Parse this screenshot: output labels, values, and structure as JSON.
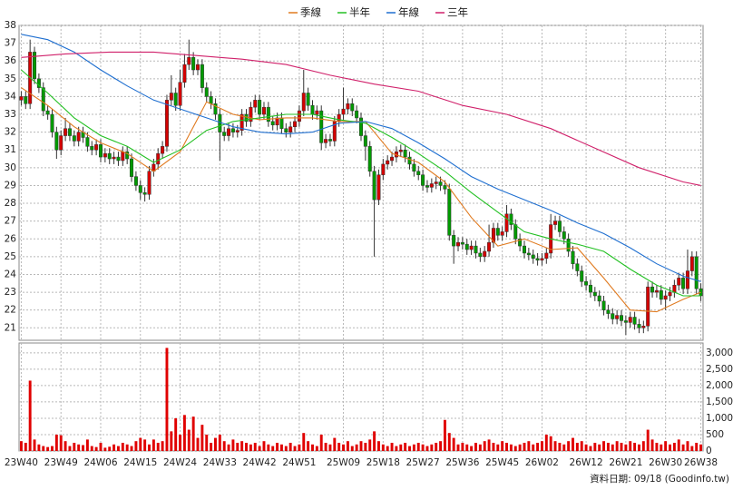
{
  "chart_data": [
    {
      "type": "candlestick",
      "legend": "top",
      "grid": true,
      "up_color": "#d40000",
      "down_color": "#009a00",
      "categories": [
        "23W40",
        null,
        null,
        null,
        null,
        null,
        null,
        null,
        null,
        "23W49",
        null,
        null,
        null,
        null,
        null,
        null,
        null,
        null,
        "24W06",
        null,
        null,
        null,
        null,
        null,
        null,
        null,
        null,
        "24W15",
        null,
        null,
        null,
        null,
        null,
        null,
        null,
        null,
        "24W24",
        null,
        null,
        null,
        null,
        null,
        null,
        null,
        null,
        "24W33",
        null,
        null,
        null,
        null,
        null,
        null,
        null,
        null,
        "24W42",
        null,
        null,
        null,
        null,
        null,
        null,
        null,
        null,
        "24W51",
        null,
        null,
        null,
        null,
        null,
        null,
        null,
        null,
        null,
        "25W09",
        null,
        null,
        null,
        null,
        null,
        null,
        null,
        null,
        "25W18",
        null,
        null,
        null,
        null,
        null,
        null,
        null,
        null,
        "25W27",
        null,
        null,
        null,
        null,
        null,
        null,
        null,
        null,
        "25W36",
        null,
        null,
        null,
        null,
        null,
        null,
        null,
        null,
        "25W45",
        null,
        null,
        null,
        null,
        null,
        null,
        null,
        null,
        "26W02",
        null,
        null,
        null,
        null,
        null,
        null,
        null,
        null,
        null,
        "26W12",
        null,
        null,
        null,
        null,
        null,
        null,
        null,
        null,
        "26W21",
        null,
        null,
        null,
        null,
        null,
        null,
        null,
        null,
        "26W30",
        null,
        null,
        null,
        null,
        null,
        null,
        null,
        "26W38"
      ],
      "open": [
        33.8,
        34.0,
        33.6,
        36.5,
        35.0,
        34.5,
        33.2,
        33.0,
        32.0,
        31.0,
        31.8,
        32.2,
        31.8,
        31.5,
        32.0,
        31.7,
        31.2,
        31.0,
        31.3,
        30.6,
        30.8,
        30.5,
        30.6,
        30.4,
        30.9,
        30.5,
        29.5,
        29.0,
        28.6,
        28.5,
        29.8,
        30.2,
        30.8,
        31.2,
        33.8,
        34.2,
        33.5,
        34.8,
        35.8,
        36.2,
        35.5,
        35.8,
        34.5,
        34.0,
        33.6,
        33.0,
        32.0,
        31.8,
        32.2,
        32.0,
        32.1,
        33.0,
        32.6,
        33.4,
        33.8,
        33.0,
        33.4,
        32.6,
        32.4,
        32.8,
        32.2,
        32.0,
        32.3,
        32.6,
        33.2,
        34.2,
        33.5,
        33.0,
        33.2,
        31.4,
        31.6,
        31.5,
        32.6,
        33.0,
        33.3,
        33.6,
        33.2,
        32.8,
        31.8,
        31.2,
        29.8,
        28.2,
        29.6,
        30.2,
        30.4,
        30.6,
        30.9,
        31.0,
        30.6,
        30.2,
        29.8,
        29.6,
        29.0,
        28.9,
        29.1,
        29.2,
        29.0,
        28.8,
        26.2,
        25.6,
        25.8,
        25.7,
        25.4,
        25.6,
        25.2,
        25.0,
        25.3,
        25.8,
        26.6,
        26.2,
        26.4,
        27.4,
        26.8,
        26.0,
        25.6,
        25.2,
        25.1,
        24.9,
        24.8,
        24.9,
        25.2,
        26.8,
        27.0,
        26.4,
        26.0,
        25.3,
        24.6,
        24.2,
        23.6,
        23.4,
        23.0,
        22.8,
        22.5,
        22.0,
        21.8,
        21.5,
        21.7,
        21.4,
        21.3,
        21.6,
        21.2,
        21.0,
        21.1,
        23.3,
        23.0,
        23.1,
        22.6,
        22.8,
        23.0,
        23.4,
        23.8,
        23.2,
        24.2,
        25.0,
        23.2
      ],
      "high": [
        34.3,
        34.3,
        37.2,
        36.8,
        35.3,
        34.8,
        33.5,
        33.3,
        32.3,
        32.1,
        32.8,
        32.5,
        32.1,
        32.3,
        32.3,
        32.0,
        31.5,
        31.6,
        31.6,
        31.1,
        31.1,
        30.9,
        30.9,
        31.2,
        31.2,
        30.8,
        29.8,
        29.3,
        28.9,
        30.1,
        30.5,
        31.1,
        31.5,
        34.1,
        35.2,
        34.5,
        35.5,
        36.4,
        37.2,
        36.5,
        36.1,
        36.1,
        34.8,
        34.3,
        33.9,
        33.3,
        32.3,
        32.5,
        32.5,
        32.4,
        33.3,
        33.3,
        33.7,
        34.1,
        34.1,
        33.7,
        33.7,
        32.9,
        33.1,
        33.1,
        32.5,
        32.6,
        32.9,
        33.5,
        35.5,
        34.5,
        33.8,
        33.5,
        33.5,
        31.9,
        31.9,
        32.9,
        33.3,
        34.5,
        33.9,
        33.9,
        33.5,
        33.1,
        32.1,
        31.5,
        30.1,
        29.9,
        30.5,
        30.7,
        30.9,
        31.2,
        31.3,
        31.3,
        30.9,
        30.5,
        30.1,
        29.9,
        29.3,
        29.4,
        29.5,
        29.5,
        29.3,
        29.1,
        26.5,
        26.1,
        26.1,
        26.0,
        25.9,
        25.9,
        25.5,
        25.6,
        26.8,
        26.9,
        26.9,
        26.7,
        27.9,
        27.7,
        27.1,
        26.3,
        25.9,
        25.5,
        25.4,
        25.2,
        25.2,
        25.5,
        27.4,
        27.3,
        27.3,
        26.7,
        26.3,
        25.6,
        24.9,
        24.5,
        23.9,
        23.7,
        23.3,
        23.1,
        22.8,
        22.3,
        22.1,
        22.0,
        22.0,
        21.7,
        21.9,
        21.9,
        21.5,
        21.4,
        23.6,
        23.6,
        23.4,
        23.4,
        23.1,
        23.3,
        23.7,
        24.1,
        24.1,
        25.4,
        25.3,
        25.3,
        23.5
      ],
      "low": [
        33.5,
        33.3,
        33.3,
        34.7,
        34.2,
        32.9,
        32.7,
        31.7,
        30.5,
        30.7,
        31.5,
        31.5,
        31.2,
        31.2,
        31.4,
        30.9,
        30.7,
        30.7,
        30.3,
        30.3,
        30.2,
        30.2,
        30.1,
        30.1,
        30.2,
        29.2,
        28.7,
        28.2,
        28.1,
        28.2,
        29.5,
        29.9,
        30.5,
        30.9,
        33.5,
        33.2,
        33.2,
        34.5,
        35.5,
        35.2,
        35.2,
        34.2,
        33.7,
        33.3,
        32.7,
        30.4,
        31.5,
        31.5,
        31.7,
        31.7,
        31.8,
        32.3,
        32.3,
        33.1,
        32.7,
        32.7,
        32.3,
        32.1,
        32.1,
        31.9,
        31.7,
        31.7,
        32.0,
        32.3,
        32.9,
        33.2,
        32.7,
        32.7,
        31.0,
        31.1,
        31.2,
        31.2,
        32.3,
        32.7,
        33.0,
        32.9,
        32.5,
        31.5,
        30.4,
        29.5,
        25.0,
        27.9,
        29.3,
        29.9,
        30.1,
        30.3,
        30.6,
        30.3,
        29.9,
        29.5,
        29.3,
        28.7,
        28.6,
        28.6,
        28.8,
        28.7,
        28.5,
        25.9,
        24.6,
        25.3,
        25.4,
        25.1,
        25.1,
        24.9,
        24.7,
        24.7,
        25.0,
        25.5,
        25.9,
        25.9,
        26.1,
        26.5,
        25.7,
        25.3,
        24.9,
        24.8,
        24.6,
        24.5,
        24.5,
        24.6,
        24.9,
        26.5,
        26.1,
        25.7,
        25.0,
        24.3,
        23.9,
        23.3,
        23.1,
        22.7,
        22.5,
        22.2,
        21.7,
        21.5,
        21.2,
        21.2,
        21.1,
        20.6,
        21.0,
        20.9,
        20.7,
        20.7,
        20.8,
        22.7,
        22.7,
        22.3,
        22.0,
        22.5,
        22.7,
        23.1,
        22.9,
        22.9,
        23.9,
        22.9,
        22.5
      ],
      "close": [
        34.0,
        33.6,
        36.5,
        35.0,
        34.5,
        33.2,
        33.0,
        32.0,
        31.0,
        31.8,
        32.2,
        31.8,
        31.5,
        32.0,
        31.7,
        31.2,
        31.0,
        31.3,
        30.6,
        30.8,
        30.5,
        30.6,
        30.4,
        30.9,
        30.5,
        29.5,
        29.0,
        28.6,
        28.5,
        29.8,
        30.2,
        30.8,
        31.2,
        33.8,
        34.2,
        33.5,
        34.8,
        35.8,
        36.2,
        35.5,
        35.8,
        34.5,
        34.0,
        33.6,
        33.0,
        32.0,
        31.8,
        32.2,
        32.0,
        32.1,
        33.0,
        32.6,
        33.4,
        33.8,
        33.0,
        33.4,
        32.6,
        32.4,
        32.8,
        32.2,
        32.0,
        32.3,
        32.6,
        33.2,
        34.2,
        33.5,
        33.0,
        33.2,
        31.4,
        31.6,
        31.5,
        32.6,
        33.0,
        33.3,
        33.6,
        33.2,
        32.8,
        31.8,
        31.2,
        29.8,
        28.2,
        29.6,
        30.2,
        30.4,
        30.6,
        30.9,
        31.0,
        30.6,
        30.2,
        29.8,
        29.6,
        29.0,
        28.9,
        29.1,
        29.2,
        29.0,
        28.8,
        26.2,
        25.6,
        25.8,
        25.7,
        25.4,
        25.6,
        25.2,
        25.0,
        25.3,
        25.8,
        26.6,
        26.2,
        26.4,
        27.4,
        26.8,
        26.0,
        25.6,
        25.2,
        25.1,
        24.9,
        24.8,
        24.9,
        25.2,
        26.8,
        27.0,
        26.4,
        26.0,
        25.3,
        24.6,
        24.2,
        23.6,
        23.4,
        23.0,
        22.8,
        22.5,
        22.0,
        21.8,
        21.5,
        21.7,
        21.4,
        21.3,
        21.6,
        21.2,
        21.0,
        21.1,
        23.3,
        23.0,
        23.1,
        22.6,
        22.8,
        23.0,
        23.4,
        23.8,
        23.2,
        24.2,
        25.0,
        23.2,
        22.8
      ],
      "series": [
        {
          "name": "季線",
          "color": "#e07a1f",
          "x": [
            0,
            6,
            12,
            18,
            24,
            30,
            36,
            42,
            48,
            54,
            60,
            66,
            72,
            78,
            84,
            90,
            96,
            102,
            108,
            114,
            120,
            126,
            132,
            138,
            144,
            150,
            154
          ],
          "values": [
            34.5,
            33.5,
            32.3,
            31.4,
            30.8,
            29.8,
            30.9,
            33.7,
            33.0,
            32.7,
            32.8,
            32.8,
            32.6,
            32.6,
            30.8,
            30.3,
            29.2,
            27.2,
            25.6,
            26.0,
            25.4,
            25.5,
            23.8,
            22.0,
            21.9,
            22.6,
            23.0
          ]
        },
        {
          "name": "半年",
          "color": "#22c022",
          "x": [
            0,
            6,
            12,
            18,
            24,
            30,
            36,
            42,
            48,
            54,
            60,
            66,
            72,
            78,
            84,
            90,
            96,
            102,
            108,
            114,
            120,
            126,
            132,
            138,
            144,
            150,
            154
          ],
          "values": [
            35.5,
            34.2,
            32.8,
            31.8,
            31.2,
            30.3,
            31.0,
            32.1,
            32.6,
            32.8,
            33.0,
            33.0,
            32.7,
            32.5,
            31.7,
            30.8,
            29.8,
            28.6,
            27.5,
            26.4,
            26.0,
            25.7,
            25.3,
            24.3,
            23.4,
            22.8,
            22.8
          ]
        },
        {
          "name": "年線",
          "color": "#1f6fd0",
          "x": [
            0,
            6,
            12,
            18,
            24,
            30,
            36,
            42,
            48,
            54,
            60,
            66,
            72,
            78,
            84,
            90,
            96,
            102,
            108,
            114,
            120,
            126,
            132,
            138,
            144,
            150,
            154
          ],
          "values": [
            37.5,
            37.2,
            36.5,
            35.5,
            34.6,
            33.8,
            33.3,
            32.8,
            32.3,
            32.0,
            31.9,
            32.0,
            32.5,
            32.6,
            32.2,
            31.4,
            30.5,
            29.5,
            28.8,
            28.2,
            27.6,
            26.9,
            26.3,
            25.5,
            24.6,
            23.9,
            23.6
          ]
        },
        {
          "name": "三年",
          "color": "#d0206a",
          "x": [
            0,
            10,
            20,
            30,
            40,
            50,
            60,
            70,
            80,
            90,
            100,
            110,
            120,
            130,
            140,
            150,
            154
          ],
          "values": [
            36.2,
            36.4,
            36.5,
            36.5,
            36.3,
            36.1,
            35.8,
            35.2,
            34.7,
            34.3,
            33.5,
            33.0,
            32.2,
            31.1,
            30.0,
            29.2,
            29.0
          ]
        }
      ],
      "ylim": [
        20.3,
        38
      ],
      "yticks": [
        21,
        22,
        23,
        24,
        25,
        26,
        27,
        28,
        29,
        30,
        31,
        32,
        33,
        34,
        35,
        36,
        37,
        38
      ]
    },
    {
      "type": "bar",
      "color": "#e00000",
      "grid": true,
      "values": [
        300,
        250,
        2150,
        350,
        200,
        150,
        120,
        150,
        500,
        480,
        300,
        150,
        250,
        200,
        180,
        350,
        150,
        120,
        250,
        100,
        130,
        200,
        150,
        250,
        200,
        150,
        300,
        400,
        350,
        200,
        350,
        250,
        300,
        3150,
        600,
        1000,
        500,
        1100,
        650,
        1050,
        400,
        800,
        500,
        250,
        400,
        500,
        300,
        200,
        350,
        250,
        300,
        250,
        200,
        250,
        150,
        300,
        200,
        150,
        250,
        200,
        150,
        250,
        150,
        200,
        550,
        300,
        200,
        150,
        500,
        250,
        200,
        400,
        250,
        200,
        300,
        150,
        200,
        300,
        250,
        350,
        600,
        300,
        200,
        150,
        250,
        150,
        200,
        250,
        150,
        200,
        250,
        200,
        150,
        200,
        250,
        300,
        950,
        550,
        400,
        200,
        250,
        200,
        150,
        250,
        200,
        300,
        350,
        250,
        200,
        300,
        250,
        200,
        150,
        200,
        250,
        300,
        200,
        250,
        300,
        500,
        450,
        300,
        250,
        200,
        300,
        400,
        250,
        300,
        200,
        150,
        250,
        200,
        300,
        250,
        200,
        300,
        250,
        200,
        300,
        250,
        200,
        300,
        650,
        350,
        250,
        200,
        300,
        200,
        250,
        350,
        200,
        300,
        150,
        250,
        200
      ],
      "ylim": [
        0,
        3300
      ],
      "yticks": [
        {
          "value": 3000,
          "label": "3,000"
        },
        {
          "value": 2500,
          "label": "2,500"
        },
        {
          "value": 2000,
          "label": "2,000"
        },
        {
          "value": 1500,
          "label": "1,500"
        },
        {
          "value": 1000,
          "label": "1,000"
        },
        500,
        0
      ],
      "annotation": "資料日期: 09/18  (Goodinfo.tw)"
    }
  ]
}
